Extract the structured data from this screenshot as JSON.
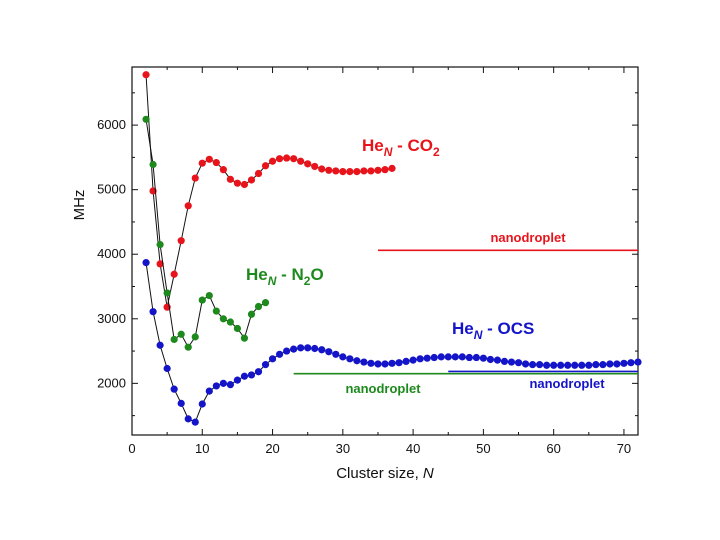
{
  "chart_data": {
    "type": "line",
    "xlabel": "Cluster size,",
    "xlabel_var": "N",
    "ylabel": "MHz",
    "xlim": [
      0,
      72
    ],
    "ylim": [
      1200,
      6900
    ],
    "x_ticks": [
      0,
      10,
      20,
      30,
      40,
      50,
      60,
      70
    ],
    "y_ticks": [
      2000,
      3000,
      4000,
      5000,
      6000
    ],
    "grid": false,
    "series": [
      {
        "name": "HeN - CO2",
        "label_base": "He",
        "label_sub": "N",
        "label_tail": " - CO",
        "label_tail_sub": "2",
        "color": "#e8141b",
        "x": [
          2,
          3,
          4,
          5,
          6,
          7,
          8,
          9,
          10,
          11,
          12,
          13,
          14,
          15,
          16,
          17,
          18,
          19,
          20,
          21,
          22,
          23,
          24,
          25,
          26,
          27,
          28,
          29,
          30,
          31,
          32,
          33,
          34,
          35,
          36,
          37
        ],
        "y": [
          6780,
          4980,
          3850,
          3180,
          3690,
          4210,
          4750,
          5180,
          5410,
          5470,
          5420,
          5310,
          5160,
          5100,
          5080,
          5150,
          5250,
          5370,
          5440,
          5480,
          5490,
          5480,
          5440,
          5400,
          5360,
          5320,
          5300,
          5290,
          5280,
          5280,
          5280,
          5290,
          5290,
          5300,
          5310,
          5330
        ]
      },
      {
        "name": "HeN - N2O",
        "label_base": "He",
        "label_sub": "N",
        "label_tail": " - N",
        "label_tail_sub": "2",
        "label_tail2": "O",
        "color": "#1e8a1e",
        "x": [
          2,
          3,
          4,
          5,
          6,
          7,
          8,
          9,
          10,
          11,
          12,
          13,
          14,
          15,
          16,
          17,
          18,
          19
        ],
        "y": [
          6090,
          5390,
          4150,
          3400,
          2680,
          2760,
          2560,
          2720,
          3290,
          3360,
          3120,
          3000,
          2950,
          2850,
          2700,
          3070,
          3190,
          3250
        ]
      },
      {
        "name": "HeN - OCS",
        "label_base": "He",
        "label_sub": "N",
        "label_tail": " - OCS",
        "color": "#1414c8",
        "x": [
          2,
          3,
          4,
          5,
          6,
          7,
          8,
          9,
          10,
          11,
          12,
          13,
          14,
          15,
          16,
          17,
          18,
          19,
          20,
          21,
          22,
          23,
          24,
          25,
          26,
          27,
          28,
          29,
          30,
          31,
          32,
          33,
          34,
          35,
          36,
          37,
          38,
          39,
          40,
          41,
          42,
          43,
          44,
          45,
          46,
          47,
          48,
          49,
          50,
          51,
          52,
          53,
          54,
          55,
          56,
          57,
          58,
          59,
          60,
          61,
          62,
          63,
          64,
          65,
          66,
          67,
          68,
          69,
          70,
          71,
          72
        ],
        "y": [
          3870,
          3110,
          2590,
          2230,
          1910,
          1690,
          1450,
          1400,
          1680,
          1880,
          1960,
          2000,
          1980,
          2050,
          2110,
          2130,
          2180,
          2290,
          2380,
          2450,
          2500,
          2530,
          2550,
          2550,
          2540,
          2520,
          2490,
          2450,
          2410,
          2380,
          2350,
          2330,
          2310,
          2300,
          2300,
          2310,
          2320,
          2340,
          2360,
          2380,
          2390,
          2400,
          2410,
          2410,
          2410,
          2410,
          2400,
          2400,
          2390,
          2370,
          2360,
          2340,
          2330,
          2320,
          2300,
          2290,
          2290,
          2280,
          2280,
          2280,
          2280,
          2280,
          2280,
          2280,
          2290,
          2290,
          2300,
          2300,
          2310,
          2320,
          2330
        ]
      }
    ],
    "reference_lines": [
      {
        "label": "nanodroplet",
        "color": "#e8141b",
        "x_start": 35,
        "x_end": 72,
        "y": 4060
      },
      {
        "label": "nanodroplet",
        "color": "#1e8a1e",
        "x_start": 23,
        "x_end": 72,
        "y": 2150
      },
      {
        "label": "nanodroplet",
        "color": "#1414c8",
        "x_start": 45,
        "x_end": 72,
        "y": 2185
      }
    ]
  }
}
